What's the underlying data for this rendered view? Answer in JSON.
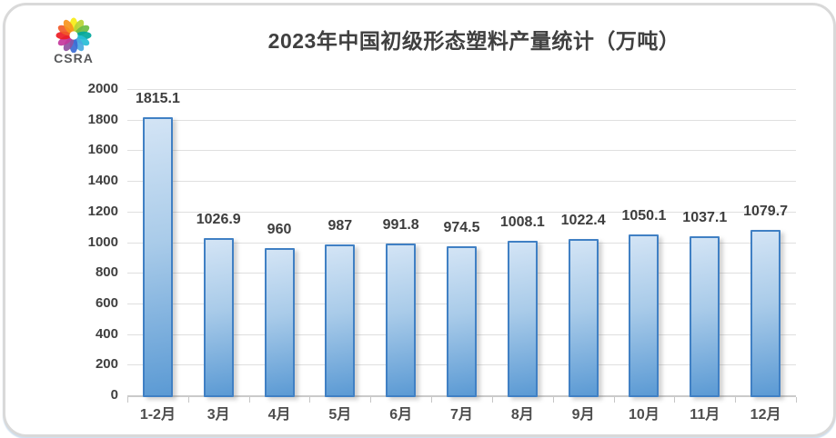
{
  "logo": {
    "text": "CSRA"
  },
  "title": "2023年中国初级形态塑料产量统计（万吨）",
  "chart_data": {
    "type": "bar",
    "title": "2023年中国初级形态塑料产量统计（万吨）",
    "categories": [
      "1-2月",
      "3月",
      "4月",
      "5月",
      "6月",
      "7月",
      "8月",
      "9月",
      "10月",
      "11月",
      "12月"
    ],
    "values": [
      1815.1,
      1026.9,
      960,
      987,
      991.8,
      974.5,
      1008.1,
      1022.4,
      1050.1,
      1037.1,
      1079.7
    ],
    "value_labels": [
      "1815.1",
      "1026.9",
      "960",
      "987",
      "991.8",
      "974.5",
      "1008.1",
      "1022.4",
      "1050.1",
      "1037.1",
      "1079.7"
    ],
    "xlabel": "",
    "ylabel": "",
    "ylim": [
      0,
      2000
    ],
    "ytick_step": 200,
    "grid": true,
    "legend": false,
    "colors": {
      "bar_fill_light": "#d3e4f5",
      "bar_fill_dark": "#5b9ad4",
      "bar_border": "#4080c4",
      "gridline": "#dfdfdf",
      "axis_text": "#404040",
      "title_text": "#404040"
    },
    "logo_petal_colors": [
      "#f6eb16",
      "#b5d334",
      "#6abd45",
      "#00a79d",
      "#27bdd6",
      "#4aa8df",
      "#3a6ad4",
      "#8e52a1",
      "#c4379c",
      "#ed1c24",
      "#f15a29",
      "#f7941d"
    ]
  }
}
